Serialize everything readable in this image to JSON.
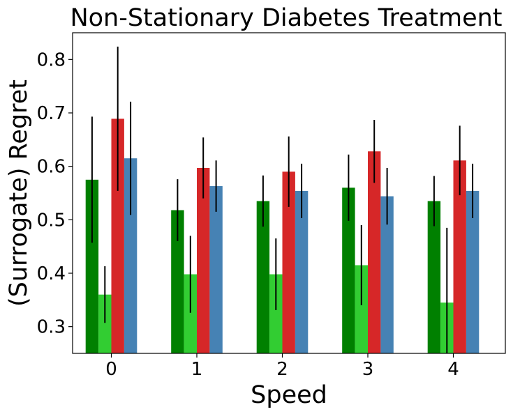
{
  "chart_data": {
    "type": "bar",
    "title": "Non-Stationary Diabetes Treatment",
    "xlabel": "Speed",
    "ylabel": "(Surrogate) Regret",
    "categories": [
      "0",
      "1",
      "2",
      "3",
      "4"
    ],
    "ylim": [
      0.25,
      0.85
    ],
    "yticks": [
      0.3,
      0.4,
      0.5,
      0.6,
      0.7,
      0.8
    ],
    "ytick_labels": [
      "0.3",
      "0.4",
      "0.5",
      "0.6",
      "0.7",
      "0.8"
    ],
    "grid": false,
    "legend": null,
    "series": [
      {
        "name": "series-1",
        "color": "#008000",
        "values": [
          0.575,
          0.518,
          0.535,
          0.56,
          0.535
        ],
        "errors": [
          0.118,
          0.058,
          0.048,
          0.062,
          0.047
        ]
      },
      {
        "name": "series-2",
        "color": "#32cd32",
        "values": [
          0.36,
          0.398,
          0.398,
          0.415,
          0.345
        ],
        "errors": [
          0.053,
          0.072,
          0.067,
          0.075,
          0.14
        ]
      },
      {
        "name": "series-3",
        "color": "#d62728",
        "values": [
          0.689,
          0.597,
          0.59,
          0.628,
          0.611
        ],
        "errors": [
          0.135,
          0.057,
          0.066,
          0.059,
          0.065
        ]
      },
      {
        "name": "series-4",
        "color": "#4682b4",
        "values": [
          0.615,
          0.563,
          0.554,
          0.544,
          0.554
        ],
        "errors": [
          0.106,
          0.048,
          0.051,
          0.053,
          0.051
        ]
      }
    ]
  }
}
